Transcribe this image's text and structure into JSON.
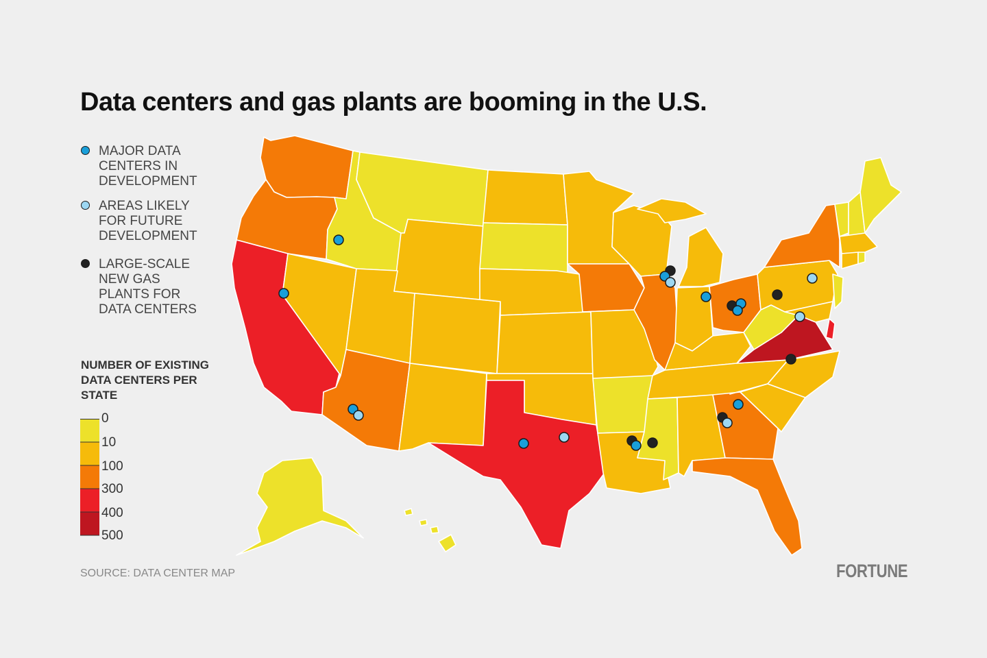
{
  "title": "Data centers and gas plants are booming in the U.S.",
  "legend": {
    "items": [
      {
        "label": "MAJOR DATA CENTERS IN DEVELOPMENT",
        "color": "#1a9fd9",
        "icon": "blue-dot-icon"
      },
      {
        "label": "AREAS LIKELY FOR FUTURE DEVELOPMENT",
        "color": "#9dd7f2",
        "icon": "light-blue-dot-icon"
      },
      {
        "label": "LARGE-SCALE NEW GAS PLANTS FOR DATA CENTERS",
        "color": "#222222",
        "icon": "black-dot-icon"
      }
    ]
  },
  "scale": {
    "title": "NUMBER OF EXISTING DATA CENTERS PER STATE",
    "stops": [
      {
        "label": "0"
      },
      {
        "label": "10"
      },
      {
        "label": "100"
      },
      {
        "label": "300"
      },
      {
        "label": "400"
      },
      {
        "label": "500"
      }
    ],
    "colors": [
      "#ede12a",
      "#f6bb0a",
      "#f47a07",
      "#ec1f27",
      "#be1620"
    ]
  },
  "source": "SOURCE: DATA CENTER MAP",
  "brand": "FORTUNE"
}
